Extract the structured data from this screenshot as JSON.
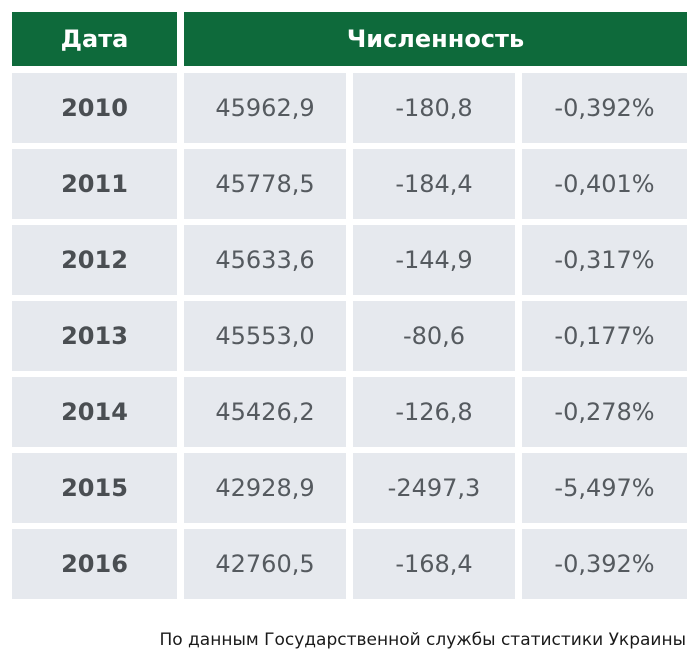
{
  "header": {
    "date_label": "Дата",
    "count_label": "Численность"
  },
  "chart_data": {
    "type": "table",
    "columns": [
      "Дата",
      "Численность"
    ],
    "rows": [
      {
        "year": "2010",
        "population": "45962,9",
        "change": "-180,8",
        "percent": "-0,392%"
      },
      {
        "year": "2011",
        "population": "45778,5",
        "change": "-184,4",
        "percent": "-0,401%"
      },
      {
        "year": "2012",
        "population": "45633,6",
        "change": "-144,9",
        "percent": "-0,317%"
      },
      {
        "year": "2013",
        "population": "45553,0",
        "change": "-80,6",
        "percent": "-0,177%"
      },
      {
        "year": "2014",
        "population": "45426,2",
        "change": "-126,8",
        "percent": "-0,278%"
      },
      {
        "year": "2015",
        "population": "42928,9",
        "change": "-2497,3",
        "percent": "-5,497%"
      },
      {
        "year": "2016",
        "population": "42760,5",
        "change": "-168,4",
        "percent": "-0,392%"
      }
    ]
  },
  "source_note": "По данным Государственной службы статистики Украины",
  "colors": {
    "header_bg": "#0e6a3b",
    "cell_bg": "#e6e9ee",
    "text": "#555a5f"
  }
}
